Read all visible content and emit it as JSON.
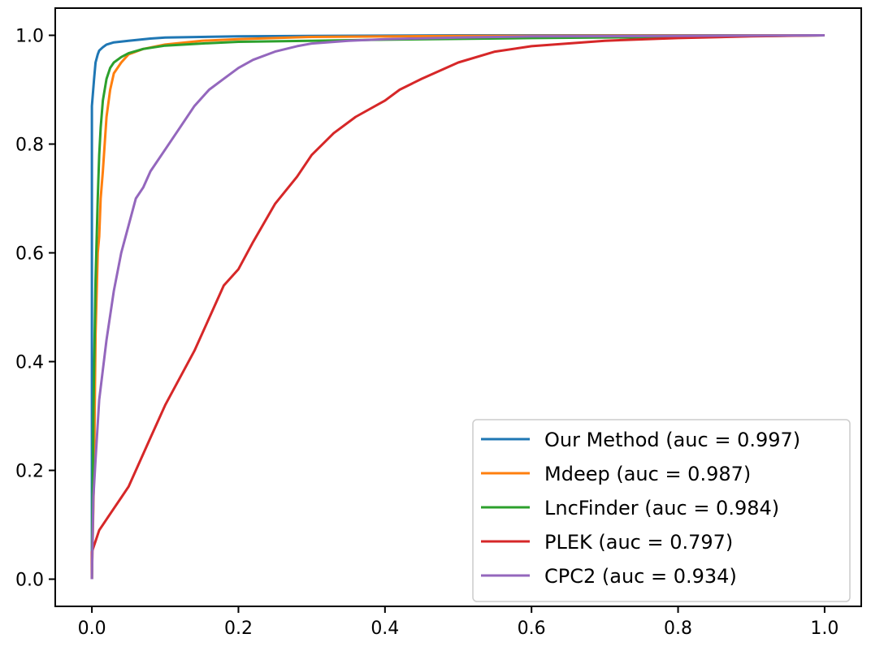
{
  "chart_data": {
    "type": "line",
    "title": "",
    "xlabel": "",
    "ylabel": "",
    "xlim": [
      -0.05,
      1.05
    ],
    "ylim": [
      -0.05,
      1.05
    ],
    "xticks": [
      0.0,
      0.2,
      0.4,
      0.6,
      0.8,
      1.0
    ],
    "yticks": [
      0.0,
      0.2,
      0.4,
      0.6,
      0.8,
      1.0
    ],
    "xtick_labels": [
      "0.0",
      "0.2",
      "0.4",
      "0.6",
      "0.8",
      "1.0"
    ],
    "ytick_labels": [
      "0.0",
      "0.2",
      "0.4",
      "0.6",
      "0.8",
      "1.0"
    ],
    "grid": false,
    "legend": {
      "position": "lower-right"
    },
    "series": [
      {
        "name": "Our Method (auc = 0.997)",
        "color": "#1f77b4",
        "x": [
          0,
          0.0,
          0.003,
          0.005,
          0.008,
          0.01,
          0.015,
          0.02,
          0.03,
          0.05,
          0.08,
          0.1,
          0.2,
          0.3,
          0.5,
          1.0
        ],
        "y": [
          0,
          0.87,
          0.92,
          0.95,
          0.965,
          0.972,
          0.978,
          0.983,
          0.987,
          0.99,
          0.994,
          0.996,
          0.998,
          0.999,
          1.0,
          1.0
        ]
      },
      {
        "name": "Mdeep (auc = 0.987)",
        "color": "#ff7f0e",
        "x": [
          0,
          0.003,
          0.005,
          0.008,
          0.01,
          0.012,
          0.015,
          0.02,
          0.025,
          0.03,
          0.04,
          0.05,
          0.07,
          0.1,
          0.15,
          0.2,
          0.3,
          0.5,
          1.0
        ],
        "y": [
          0,
          0.2,
          0.45,
          0.6,
          0.63,
          0.7,
          0.75,
          0.85,
          0.9,
          0.93,
          0.95,
          0.965,
          0.975,
          0.983,
          0.99,
          0.993,
          0.997,
          0.999,
          1.0
        ]
      },
      {
        "name": "LncFinder (auc = 0.984)",
        "color": "#2ca02c",
        "x": [
          0,
          0.002,
          0.005,
          0.008,
          0.01,
          0.012,
          0.015,
          0.02,
          0.025,
          0.03,
          0.04,
          0.05,
          0.07,
          0.1,
          0.15,
          0.2,
          0.3,
          0.4,
          0.6,
          0.8,
          1.0
        ],
        "y": [
          0,
          0.3,
          0.55,
          0.7,
          0.78,
          0.83,
          0.88,
          0.92,
          0.94,
          0.95,
          0.96,
          0.967,
          0.975,
          0.981,
          0.985,
          0.988,
          0.99,
          0.992,
          0.995,
          0.997,
          1.0
        ]
      },
      {
        "name": "PLEK (auc = 0.797)",
        "color": "#d62728",
        "x": [
          0,
          0.0,
          0.005,
          0.01,
          0.02,
          0.03,
          0.04,
          0.05,
          0.06,
          0.08,
          0.1,
          0.12,
          0.14,
          0.16,
          0.18,
          0.2,
          0.22,
          0.25,
          0.28,
          0.3,
          0.33,
          0.36,
          0.4,
          0.42,
          0.45,
          0.5,
          0.55,
          0.6,
          0.7,
          0.8,
          0.9,
          1.0
        ],
        "y": [
          0,
          0.05,
          0.07,
          0.09,
          0.11,
          0.13,
          0.15,
          0.17,
          0.2,
          0.26,
          0.32,
          0.37,
          0.42,
          0.48,
          0.54,
          0.57,
          0.62,
          0.69,
          0.74,
          0.78,
          0.82,
          0.85,
          0.88,
          0.9,
          0.92,
          0.95,
          0.97,
          0.98,
          0.99,
          0.995,
          0.998,
          1.0
        ]
      },
      {
        "name": "CPC2 (auc = 0.934)",
        "color": "#9467bd",
        "x": [
          0,
          0.002,
          0.005,
          0.01,
          0.02,
          0.03,
          0.04,
          0.05,
          0.06,
          0.07,
          0.08,
          0.1,
          0.12,
          0.14,
          0.16,
          0.18,
          0.2,
          0.22,
          0.25,
          0.28,
          0.3,
          0.35,
          0.4,
          0.5,
          0.6,
          0.8,
          1.0
        ],
        "y": [
          0,
          0.15,
          0.22,
          0.33,
          0.44,
          0.53,
          0.6,
          0.65,
          0.7,
          0.72,
          0.75,
          0.79,
          0.83,
          0.87,
          0.9,
          0.92,
          0.94,
          0.955,
          0.97,
          0.98,
          0.985,
          0.99,
          0.993,
          0.996,
          0.998,
          0.999,
          1.0
        ]
      }
    ]
  }
}
